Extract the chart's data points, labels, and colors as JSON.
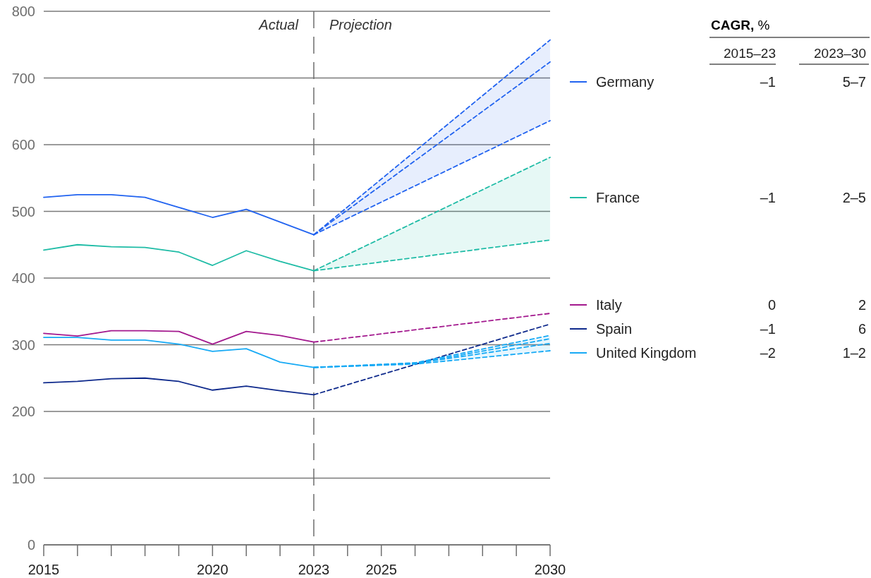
{
  "chart_data": {
    "type": "line",
    "x": [
      2015,
      2016,
      2017,
      2018,
      2019,
      2020,
      2021,
      2022,
      2023
    ],
    "xlim": [
      2015,
      2030
    ],
    "xticks": [
      2015,
      {
        "value": 2016,
        "label": null
      },
      {
        "value": 2017,
        "label": null
      },
      {
        "value": 2018,
        "label": null
      },
      {
        "value": 2019,
        "label": null
      },
      2020,
      {
        "value": 2021,
        "label": null
      },
      {
        "value": 2022,
        "label": null
      },
      2023,
      {
        "value": 2024,
        "label": null
      },
      2025,
      {
        "value": 2026,
        "label": null
      },
      {
        "value": 2027,
        "label": null
      },
      {
        "value": 2028,
        "label": null
      },
      {
        "value": 2029,
        "label": null
      },
      2030
    ],
    "ylim": [
      0,
      800
    ],
    "yticks": [
      0,
      100,
      200,
      300,
      400,
      500,
      600,
      700,
      800
    ],
    "grid": "y",
    "legend": "right",
    "series": [
      {
        "name": "Germany",
        "color": "#2163f0",
        "values": [
          521,
          525,
          525,
          521,
          506,
          491,
          503,
          484,
          465
        ]
      },
      {
        "name": "France",
        "color": "#1fbca6",
        "values": [
          442,
          450,
          447,
          446,
          439,
          419,
          441,
          425,
          411
        ]
      },
      {
        "name": "Italy",
        "color": "#a3198e",
        "values": [
          317,
          313,
          321,
          321,
          320,
          301,
          320,
          314,
          304
        ]
      },
      {
        "name": "Spain",
        "color": "#0f2a8c",
        "values": [
          243,
          245,
          249,
          250,
          245,
          232,
          238,
          231,
          225
        ]
      },
      {
        "name": "United Kingdom",
        "color": "#17aaf5",
        "values": [
          311,
          311,
          307,
          307,
          301,
          290,
          294,
          274,
          266
        ]
      },
      {
        "color": "#2163f0",
        "line_style": "dashed",
        "x": [
          2023,
          2030
        ],
        "values": [
          465,
          757
        ]
      },
      {
        "color": "#2163f0",
        "line_style": "dashed",
        "x": [
          2023,
          2030
        ],
        "values": [
          465,
          724
        ],
        "lower": [
          465,
          636
        ],
        "upper": [
          465,
          757
        ]
      },
      {
        "color": "#2163f0",
        "line_style": "dashed",
        "x": [
          2023,
          2030
        ],
        "values": [
          465,
          636
        ]
      },
      {
        "color": "#1fbca6",
        "line_style": "dashed",
        "x": [
          2023,
          2030
        ],
        "values": [
          411,
          581
        ],
        "lower": [
          411,
          457
        ],
        "upper": [
          411,
          581
        ]
      },
      {
        "color": "#1fbca6",
        "line_style": "dashed",
        "x": [
          2023,
          2030
        ],
        "values": [
          411,
          457
        ]
      },
      {
        "color": "#a3198e",
        "line_style": "dashed",
        "x": [
          2023,
          2030
        ],
        "values": [
          304,
          347
        ]
      },
      {
        "color": "#0f2a8c",
        "line_style": "dashed",
        "x": [
          2023,
          2030
        ],
        "values": [
          225,
          331
        ]
      },
      {
        "color": "#17aaf5",
        "line_style": "dashed",
        "x": [
          2023,
          2026,
          2030
        ],
        "values": [
          266,
          273,
          314
        ],
        "lower": [
          266,
          271,
          291
        ],
        "upper": [
          266,
          273,
          314
        ]
      },
      {
        "color": "#17aaf5",
        "line_style": "dashed",
        "x": [
          2023,
          2026,
          2030
        ],
        "values": [
          266,
          272,
          309
        ]
      },
      {
        "color": "#17aaf5",
        "line_style": "dashed",
        "x": [
          2023,
          2026,
          2030
        ],
        "values": [
          266,
          272,
          302
        ]
      },
      {
        "color": "#17aaf5",
        "line_style": "dashed",
        "x": [
          2023,
          2026,
          2030
        ],
        "values": [
          266,
          271,
          291
        ]
      }
    ],
    "ref_lines": [
      {
        "axis": "x",
        "value": 2023,
        "color": "#6e6e6e",
        "line_style": "dashed"
      }
    ],
    "annotations": [
      {
        "text": "Actual",
        "x": 2023,
        "y": 780
      },
      {
        "text": "Projection",
        "x": 2023,
        "y": 780
      },
      "CAGR, %",
      "2015–23",
      "2023–30",
      "–1",
      "5–7",
      "–1",
      "2–5",
      "0",
      "2",
      "–1",
      "6",
      "–2",
      "1–2"
    ]
  }
}
